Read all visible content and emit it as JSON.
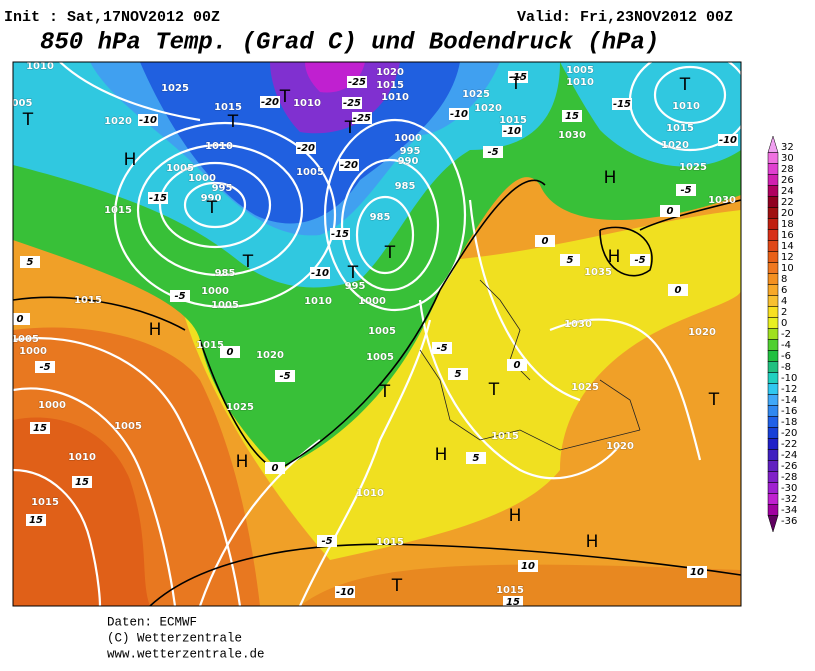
{
  "header": {
    "init": "Init : Sat,17NOV2012 00Z",
    "valid": "Valid: Fri,23NOV2012 00Z",
    "title": "850 hPa Temp. (Grad C) und Bodendruck (hPa)"
  },
  "footer": [
    "Daten: ECMWF",
    "(C) Wetterzentrale",
    "www.wetterzentrale.de"
  ],
  "colorbar": {
    "levels": [
      {
        "value": 32,
        "color": "#f0a0f0"
      },
      {
        "value": 30,
        "color": "#f070e0"
      },
      {
        "value": 28,
        "color": "#e040d0"
      },
      {
        "value": 26,
        "color": "#d020b0"
      },
      {
        "value": 24,
        "color": "#b00060"
      },
      {
        "value": 22,
        "color": "#900020"
      },
      {
        "value": 20,
        "color": "#a01010"
      },
      {
        "value": 18,
        "color": "#c02010"
      },
      {
        "value": 16,
        "color": "#d83018"
      },
      {
        "value": 14,
        "color": "#e04818"
      },
      {
        "value": 12,
        "color": "#e86018"
      },
      {
        "value": 10,
        "color": "#f07820"
      },
      {
        "value": 8,
        "color": "#f49020"
      },
      {
        "value": 6,
        "color": "#f8a828"
      },
      {
        "value": 4,
        "color": "#f8c030"
      },
      {
        "value": 2,
        "color": "#f8e020"
      },
      {
        "value": 0,
        "color": "#e8f020"
      },
      {
        "value": -2,
        "color": "#a0e020"
      },
      {
        "value": -4,
        "color": "#50d030"
      },
      {
        "value": -6,
        "color": "#20c040"
      },
      {
        "value": -8,
        "color": "#20c080"
      },
      {
        "value": -10,
        "color": "#20d0c0"
      },
      {
        "value": -12,
        "color": "#30c8f0"
      },
      {
        "value": -14,
        "color": "#40a8f8"
      },
      {
        "value": -16,
        "color": "#3088f0"
      },
      {
        "value": -18,
        "color": "#2060e8"
      },
      {
        "value": -20,
        "color": "#1840d8"
      },
      {
        "value": -22,
        "color": "#2020c8"
      },
      {
        "value": -24,
        "color": "#4020c0"
      },
      {
        "value": -26,
        "color": "#6020c0"
      },
      {
        "value": -28,
        "color": "#8020c8"
      },
      {
        "value": -30,
        "color": "#a020d0"
      },
      {
        "value": -32,
        "color": "#c020d0"
      },
      {
        "value": -34,
        "color": "#a000a0"
      },
      {
        "value": -36,
        "color": "#600060"
      }
    ]
  },
  "map": {
    "labels": [
      "1010",
      "005",
      "T",
      "1025",
      "1020",
      "-10",
      "T",
      "1015",
      "-20",
      "1010",
      "T",
      "-25",
      "1020",
      "1015",
      "1010",
      "-25",
      "-25",
      "T",
      "1010",
      "H",
      "1005",
      "1000",
      "995",
      "990",
      "T",
      "-15",
      "1015",
      "1005",
      "-20",
      "-20",
      "985",
      "1000",
      "995",
      "990",
      "985",
      "T",
      "-15",
      "-10",
      "T",
      "995",
      "985",
      "T",
      "1000",
      "1005",
      "-5",
      "1010",
      "1000",
      "H",
      "1015",
      "0",
      "1020",
      "-5",
      "1005",
      "1005",
      "T",
      "1025",
      "H",
      "0",
      "1010",
      "1015",
      "-5",
      "T",
      "1015",
      "15",
      "-10",
      "10",
      "10",
      "H",
      "H",
      "H",
      "T",
      "1015",
      "1020",
      "1025",
      "1030",
      "1035",
      "H",
      "-5",
      "T",
      "1020",
      "5",
      "0",
      "0",
      "H",
      "0",
      "-5",
      "1030",
      "1025",
      "1020",
      "1015",
      "1010",
      "T",
      "-15",
      "1005",
      "1010",
      "-15",
      "T",
      "1025",
      "1020",
      "-10",
      "1015",
      "-10",
      "-5",
      "15",
      "1030",
      "-10",
      "1005",
      "1000",
      "-5",
      "1000",
      "15",
      "1005",
      "1010",
      "15",
      "1015",
      "15",
      "5",
      "1015",
      "0",
      "-5",
      "5",
      "0",
      "5"
    ]
  }
}
